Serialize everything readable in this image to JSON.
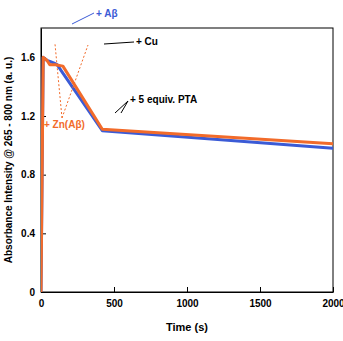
{
  "chart_data": {
    "type": "line",
    "x_label": "Time (s)",
    "y_label": "Absorbance Intensity @ 265 - 800 nm (a. u.)",
    "xlim": [
      0,
      2000
    ],
    "xticks": [
      0,
      500,
      1000,
      1500,
      2000
    ],
    "ylim": [
      0,
      1.8
    ],
    "yticks": [
      0,
      0.4,
      0.8,
      1.2,
      1.6
    ],
    "series": [
      {
        "color": "#3b5bd6",
        "x": [
          0,
          15,
          40,
          65,
          90,
          110,
          420,
          2000
        ],
        "values": [
          0,
          1.6,
          1.58,
          1.57,
          1.56,
          1.55,
          1.1,
          0.98
        ]
      },
      {
        "color": "#f26b2a",
        "x": [
          0,
          15,
          40,
          60,
          100,
          150,
          420,
          2000
        ],
        "values": [
          0,
          1.6,
          1.58,
          1.55,
          1.55,
          1.54,
          1.11,
          1.01
        ]
      }
    ],
    "annotations": [
      {
        "text": "+ Aβ",
        "color": "#3b5bd6"
      },
      {
        "text": "+ Cu",
        "color": "#000000"
      },
      {
        "text": "+ 5 equiv. PTA",
        "color": "#000000"
      },
      {
        "text": "+ Zn(Aβ)",
        "color": "#f26b2a"
      }
    ]
  }
}
